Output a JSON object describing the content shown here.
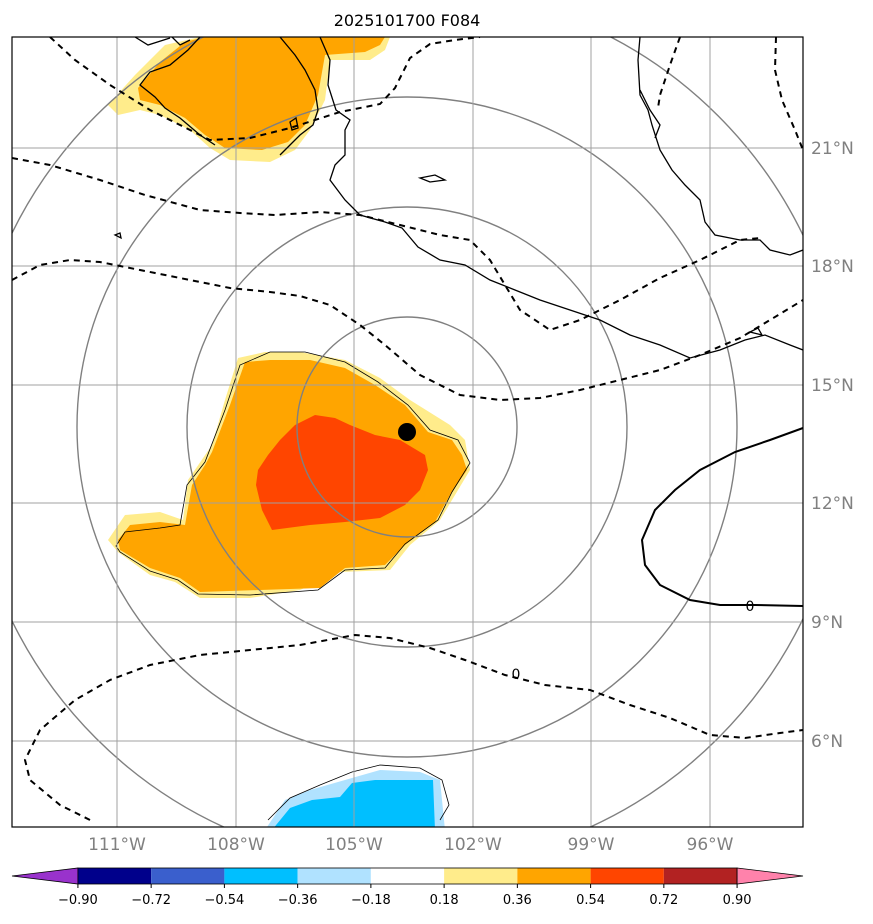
{
  "title": "2025101700 F084",
  "lat_labels": [
    "21°N",
    "18°N",
    "15°N",
    "12°N",
    "9°N",
    "6°N"
  ],
  "lon_labels": [
    "111°W",
    "108°W",
    "105°W",
    "102°W",
    "99°W",
    "96°W"
  ],
  "contour_labels": [
    "0",
    "0"
  ],
  "colorbar": {
    "ticks": [
      "−0.90",
      "−0.72",
      "−0.54",
      "−0.36",
      "−0.18",
      "0.18",
      "0.36",
      "0.54",
      "0.72",
      "0.90"
    ],
    "colors": [
      "#9932cc",
      "#00008b",
      "#3a5fcd",
      "#00bfff",
      "#b0e2ff",
      "#ffffff",
      "#ffec8b",
      "#ffa500",
      "#ff4500",
      "#b22222",
      "#ff82ab"
    ]
  },
  "colors": {
    "orange": "#ffa500",
    "light_yellow": "#ffec8b",
    "red_orange": "#ff4500",
    "cyan": "#00bfff",
    "light_blue": "#b0e2ff"
  }
}
